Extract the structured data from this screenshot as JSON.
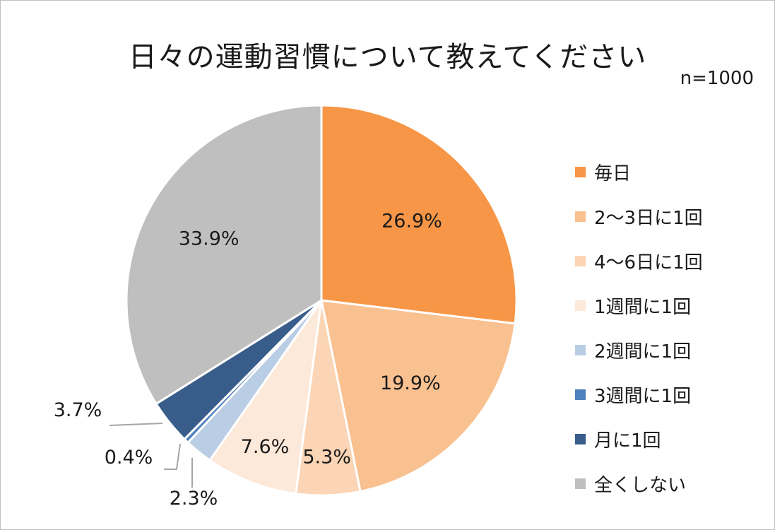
{
  "chart_data": {
    "type": "pie",
    "title": "日々の運動習慣について教えてください",
    "note": "n=1000",
    "unit": "%",
    "categories": [
      "毎日",
      "2～3日に1回",
      "4～6日に1回",
      "1週間に1回",
      "2週間に1回",
      "3週間に1回",
      "月に1回",
      "全くしない"
    ],
    "values": [
      26.9,
      19.9,
      5.3,
      7.6,
      2.3,
      0.4,
      3.7,
      33.9
    ],
    "value_labels": [
      "26.9%",
      "19.9%",
      "5.3%",
      "7.6%",
      "2.3%",
      "0.4%",
      "3.7%",
      "33.9%"
    ],
    "colors": [
      "#f79646",
      "#f9c090",
      "#fbd5b5",
      "#fde9d9",
      "#b9cde5",
      "#4f81bd",
      "#385d8a",
      "#bfbfbf"
    ],
    "start": "12 o'clock, clockwise",
    "legend_position": "right"
  }
}
